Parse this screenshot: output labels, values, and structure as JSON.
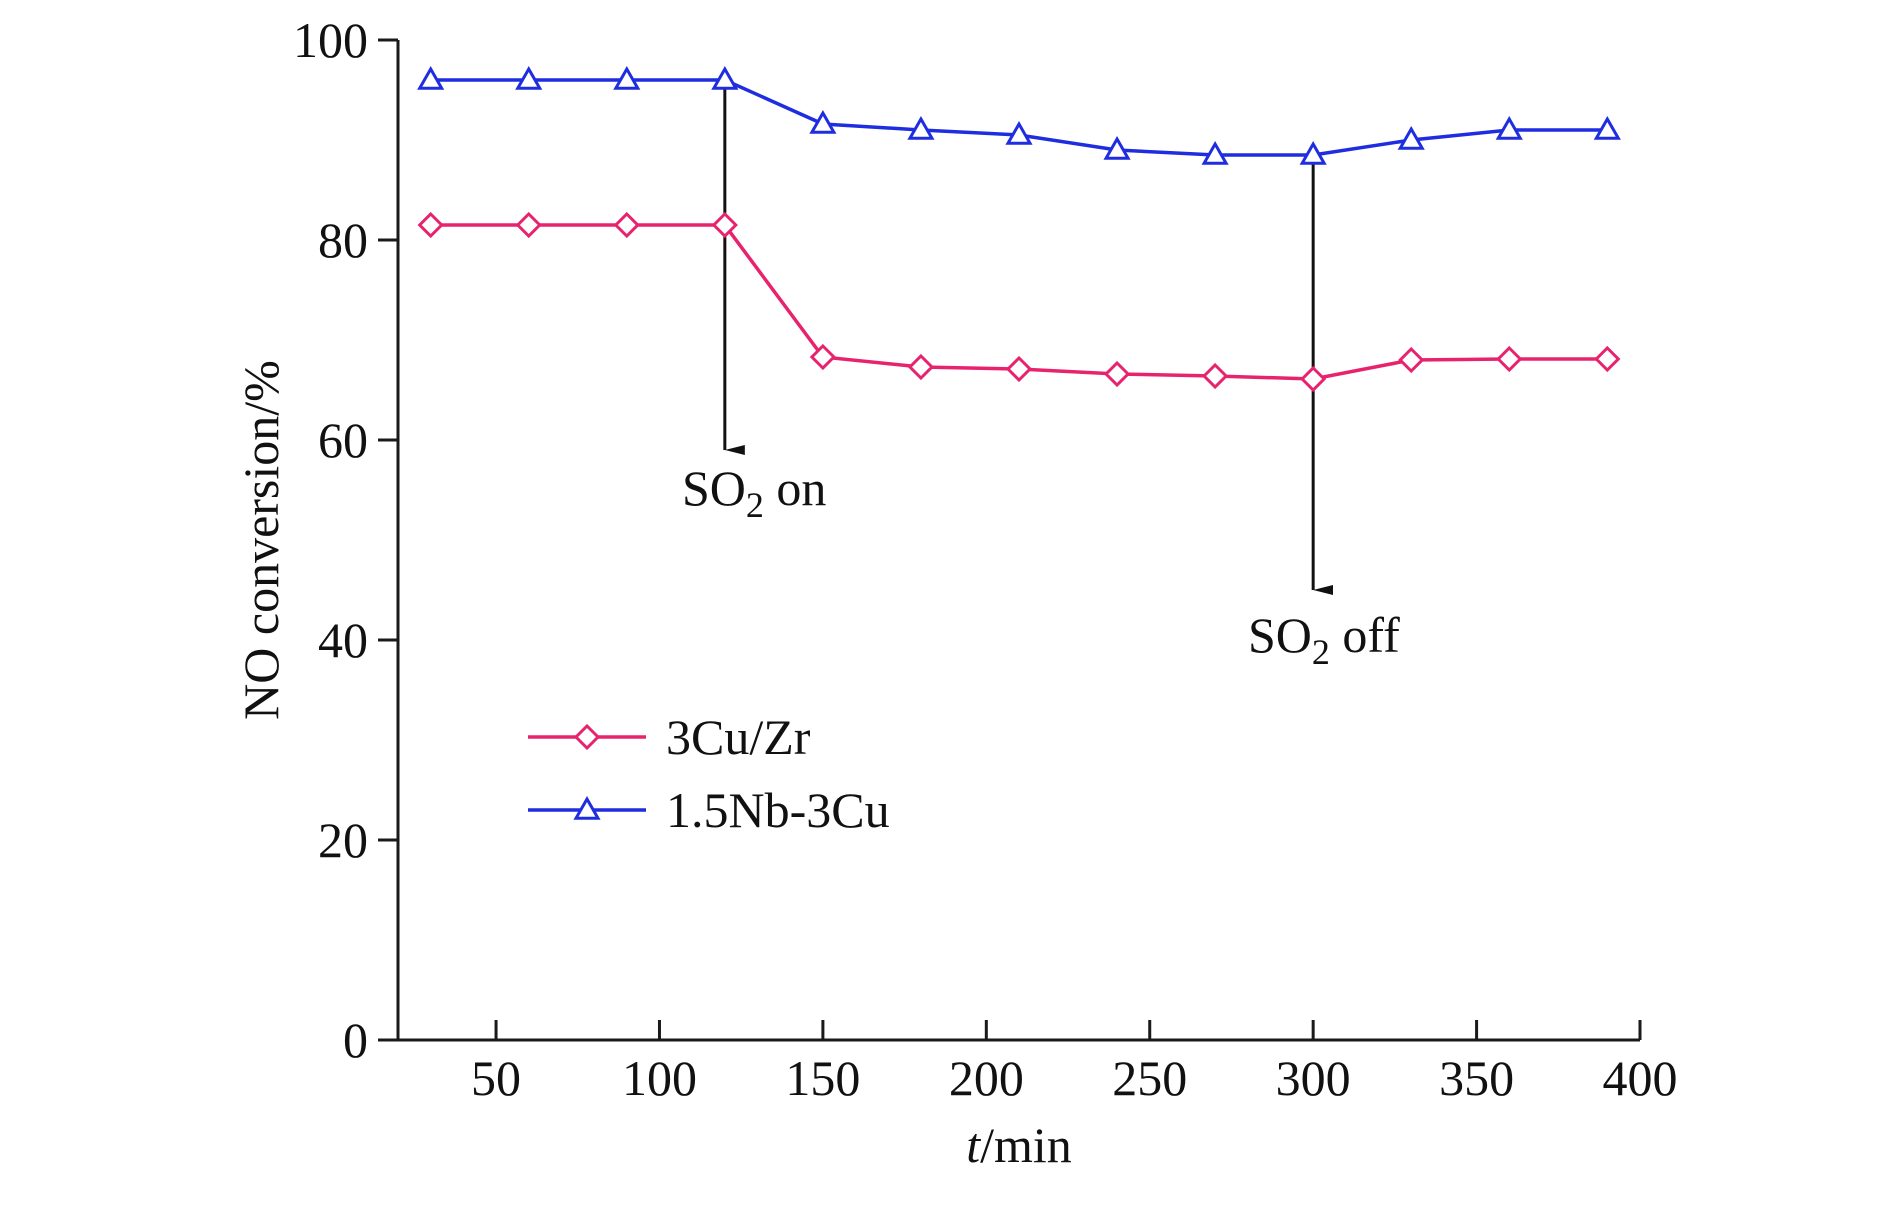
{
  "chart_data": {
    "type": "line",
    "xlabel": {
      "italic": "t",
      "rest": "/min"
    },
    "ylabel": "NO conversion/%",
    "xlim": [
      20,
      400
    ],
    "ylim": [
      0,
      100
    ],
    "xticks": [
      50,
      100,
      150,
      200,
      250,
      300,
      350,
      400
    ],
    "yticks": [
      0,
      20,
      40,
      60,
      80,
      100
    ],
    "grid": false,
    "legend_position": "center-left",
    "x": [
      30,
      60,
      90,
      120,
      150,
      180,
      210,
      240,
      270,
      300,
      330,
      360,
      390
    ],
    "series": [
      {
        "name": "3Cu/Zr",
        "color": "#e8236e",
        "marker": "diamond",
        "values": [
          81.5,
          81.5,
          81.5,
          81.5,
          68.3,
          67.3,
          67.1,
          66.6,
          66.4,
          66.1,
          68.0,
          68.1,
          68.1
        ]
      },
      {
        "name": "1.5Nb-3Cu",
        "color": "#1f2de0",
        "marker": "triangle",
        "values": [
          96,
          96,
          96,
          96,
          91.6,
          91,
          90.5,
          89,
          88.5,
          88.5,
          90,
          91,
          91
        ]
      }
    ],
    "annotations": [
      {
        "text_main": "SO",
        "text_sub": "2",
        "text_rest": " on",
        "x": 120,
        "y_from": 96,
        "y_to": 59
      },
      {
        "text_main": "SO",
        "text_sub": "2",
        "text_rest": " off",
        "x": 300,
        "y_from": 88.5,
        "y_to": 45
      }
    ]
  }
}
